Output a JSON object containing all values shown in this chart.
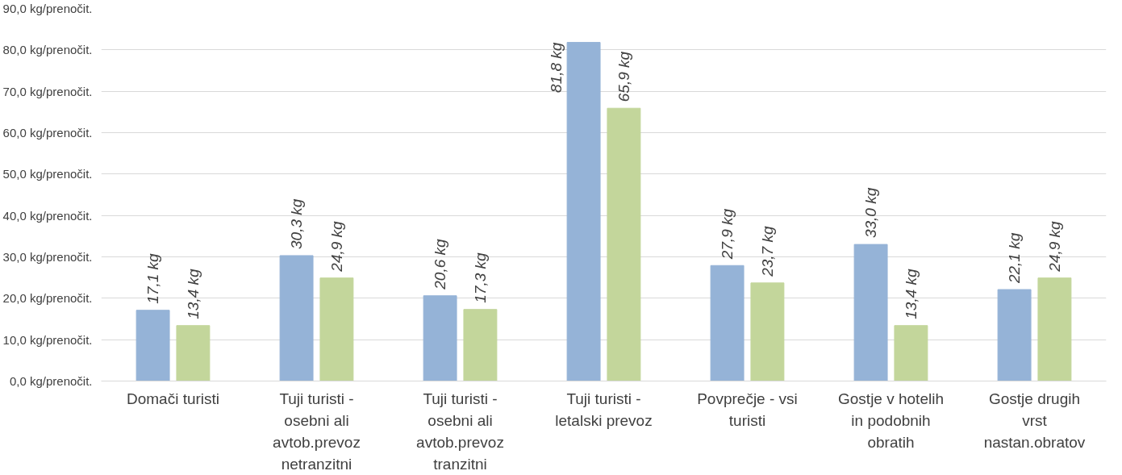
{
  "chart_data": {
    "type": "bar",
    "categories": [
      "Domači turisti",
      "Tuji turisti -\nosebni ali\navtob.prevoz\nnetranzitni",
      "Tuji turisti -\nosebni ali\navtob.prevoz\ntranzitni",
      "Tuji turisti -\nletalski prevoz",
      "Povprečje - vsi\nturisti",
      "Gostje v hotelih\nin podobnih\nobratih",
      "Gostje drugih\nvrst\nnastan.obratov"
    ],
    "series": [
      {
        "color": "#95b3d7",
        "values": [
          17.1,
          30.3,
          20.6,
          81.8,
          27.9,
          33.0,
          22.1
        ],
        "value_labels": [
          "17,1 kg",
          "30,3 kg",
          "20,6 kg",
          "81,8 kg",
          "27,9 kg",
          "33,0 kg",
          "22,1 kg"
        ]
      },
      {
        "color": "#c3d69b",
        "values": [
          13.4,
          24.9,
          17.3,
          65.9,
          23.7,
          13.4,
          24.9
        ],
        "value_labels": [
          "13,4 kg",
          "24,9 kg",
          "17,3 kg",
          "65,9 kg",
          "23,7 kg",
          "13,4 kg",
          "24,9 kg"
        ]
      }
    ],
    "ylim": [
      0,
      90
    ],
    "yticks": [
      {
        "value": 0,
        "label": "0,0 kg/prenočit."
      },
      {
        "value": 10,
        "label": "10,0 kg/prenočit."
      },
      {
        "value": 20,
        "label": "20,0 kg/prenočit."
      },
      {
        "value": 30,
        "label": "30,0 kg/prenočit."
      },
      {
        "value": 40,
        "label": "40,0 kg/prenočit."
      },
      {
        "value": 50,
        "label": "50,0 kg/prenočit."
      },
      {
        "value": 60,
        "label": "60,0 kg/prenočit."
      },
      {
        "value": 70,
        "label": "70,0 kg/prenočit."
      },
      {
        "value": 80,
        "label": "80,0 kg/prenočit."
      },
      {
        "value": 90,
        "label": "90,0 kg/prenočit."
      }
    ],
    "grid": "y"
  }
}
